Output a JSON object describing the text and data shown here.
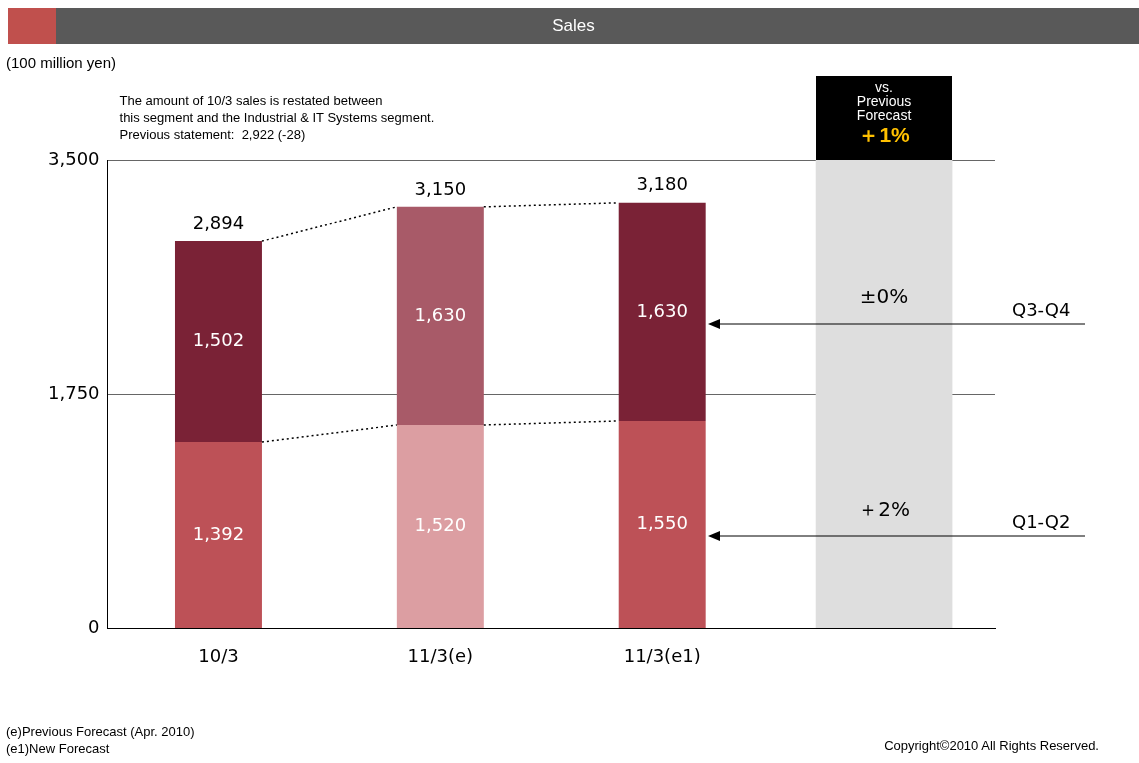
{
  "chart_data": {
    "type": "bar",
    "title": "Sales",
    "categories": [
      "10/3",
      "11/3(e)",
      "11/3(e1)",
      null
    ],
    "stacked": true,
    "series": [
      {
        "name": "Q1-Q2",
        "colors": [
          "#bd5157",
          "#dc9ea2",
          "#bd5157",
          null
        ],
        "values": [
          1392,
          1520,
          1550,
          null
        ],
        "value_labels": [
          "1,392",
          "1,520",
          "1,550",
          null
        ]
      },
      {
        "name": "Q3-Q4",
        "colors": [
          "#7a2236",
          "#a85a68",
          "#7a2236",
          null
        ],
        "values": [
          1502,
          1630,
          1630,
          null
        ],
        "value_labels": [
          "1,502",
          "1,630",
          "1,630",
          null
        ]
      },
      {
        "color": "#dedede",
        "values": [
          null,
          null,
          null,
          3500
        ]
      }
    ],
    "totals": [
      "2,894",
      "3,150",
      "3,180",
      null
    ],
    "ylim": [
      0,
      3500
    ],
    "yticks": [
      {
        "value": 0,
        "label": "0"
      },
      {
        "value": 1750,
        "label": "1,750"
      },
      {
        "value": 3500,
        "label": "3,500"
      }
    ],
    "grid": "y",
    "legend": false,
    "annotations": [
      "The amount of 10/3 sales is restated between\nthis segment and the Industrial & IT Systems segment.\nPrevious statement:  2,922 (-28)",
      "(e)Previous Forecast (Apr. 2010)",
      "(e1)New Forecast",
      "Copyright©2010 All Rights Reserved.",
      "vs.\nPrevious\nForecast",
      "＋1%",
      "±0%",
      "＋2%",
      "(100 million yen)"
    ]
  }
}
